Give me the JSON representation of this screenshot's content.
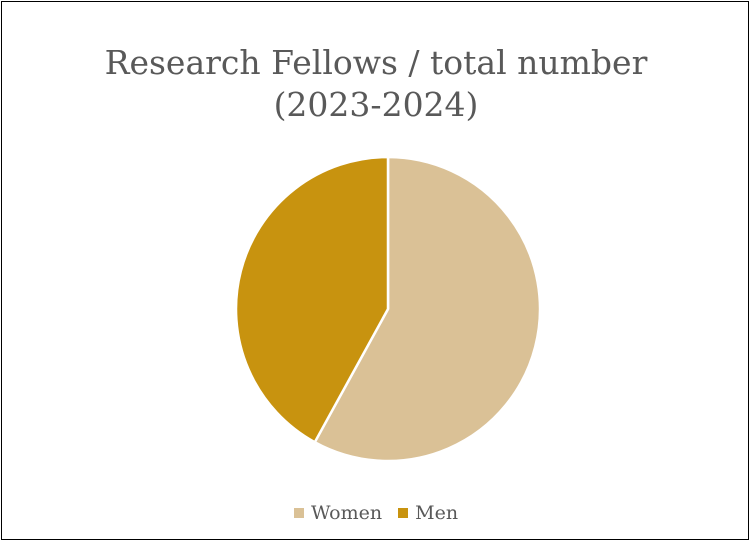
{
  "chart_data": {
    "type": "pie",
    "title_line1": "Research Fellows / total number",
    "title_line2": "(2023-2024)",
    "categories": [
      "Women",
      "Men"
    ],
    "values": [
      58,
      42
    ],
    "colors": [
      "#dac196",
      "#c8930f"
    ],
    "start_angle_deg": 0,
    "legend_position": "bottom"
  }
}
